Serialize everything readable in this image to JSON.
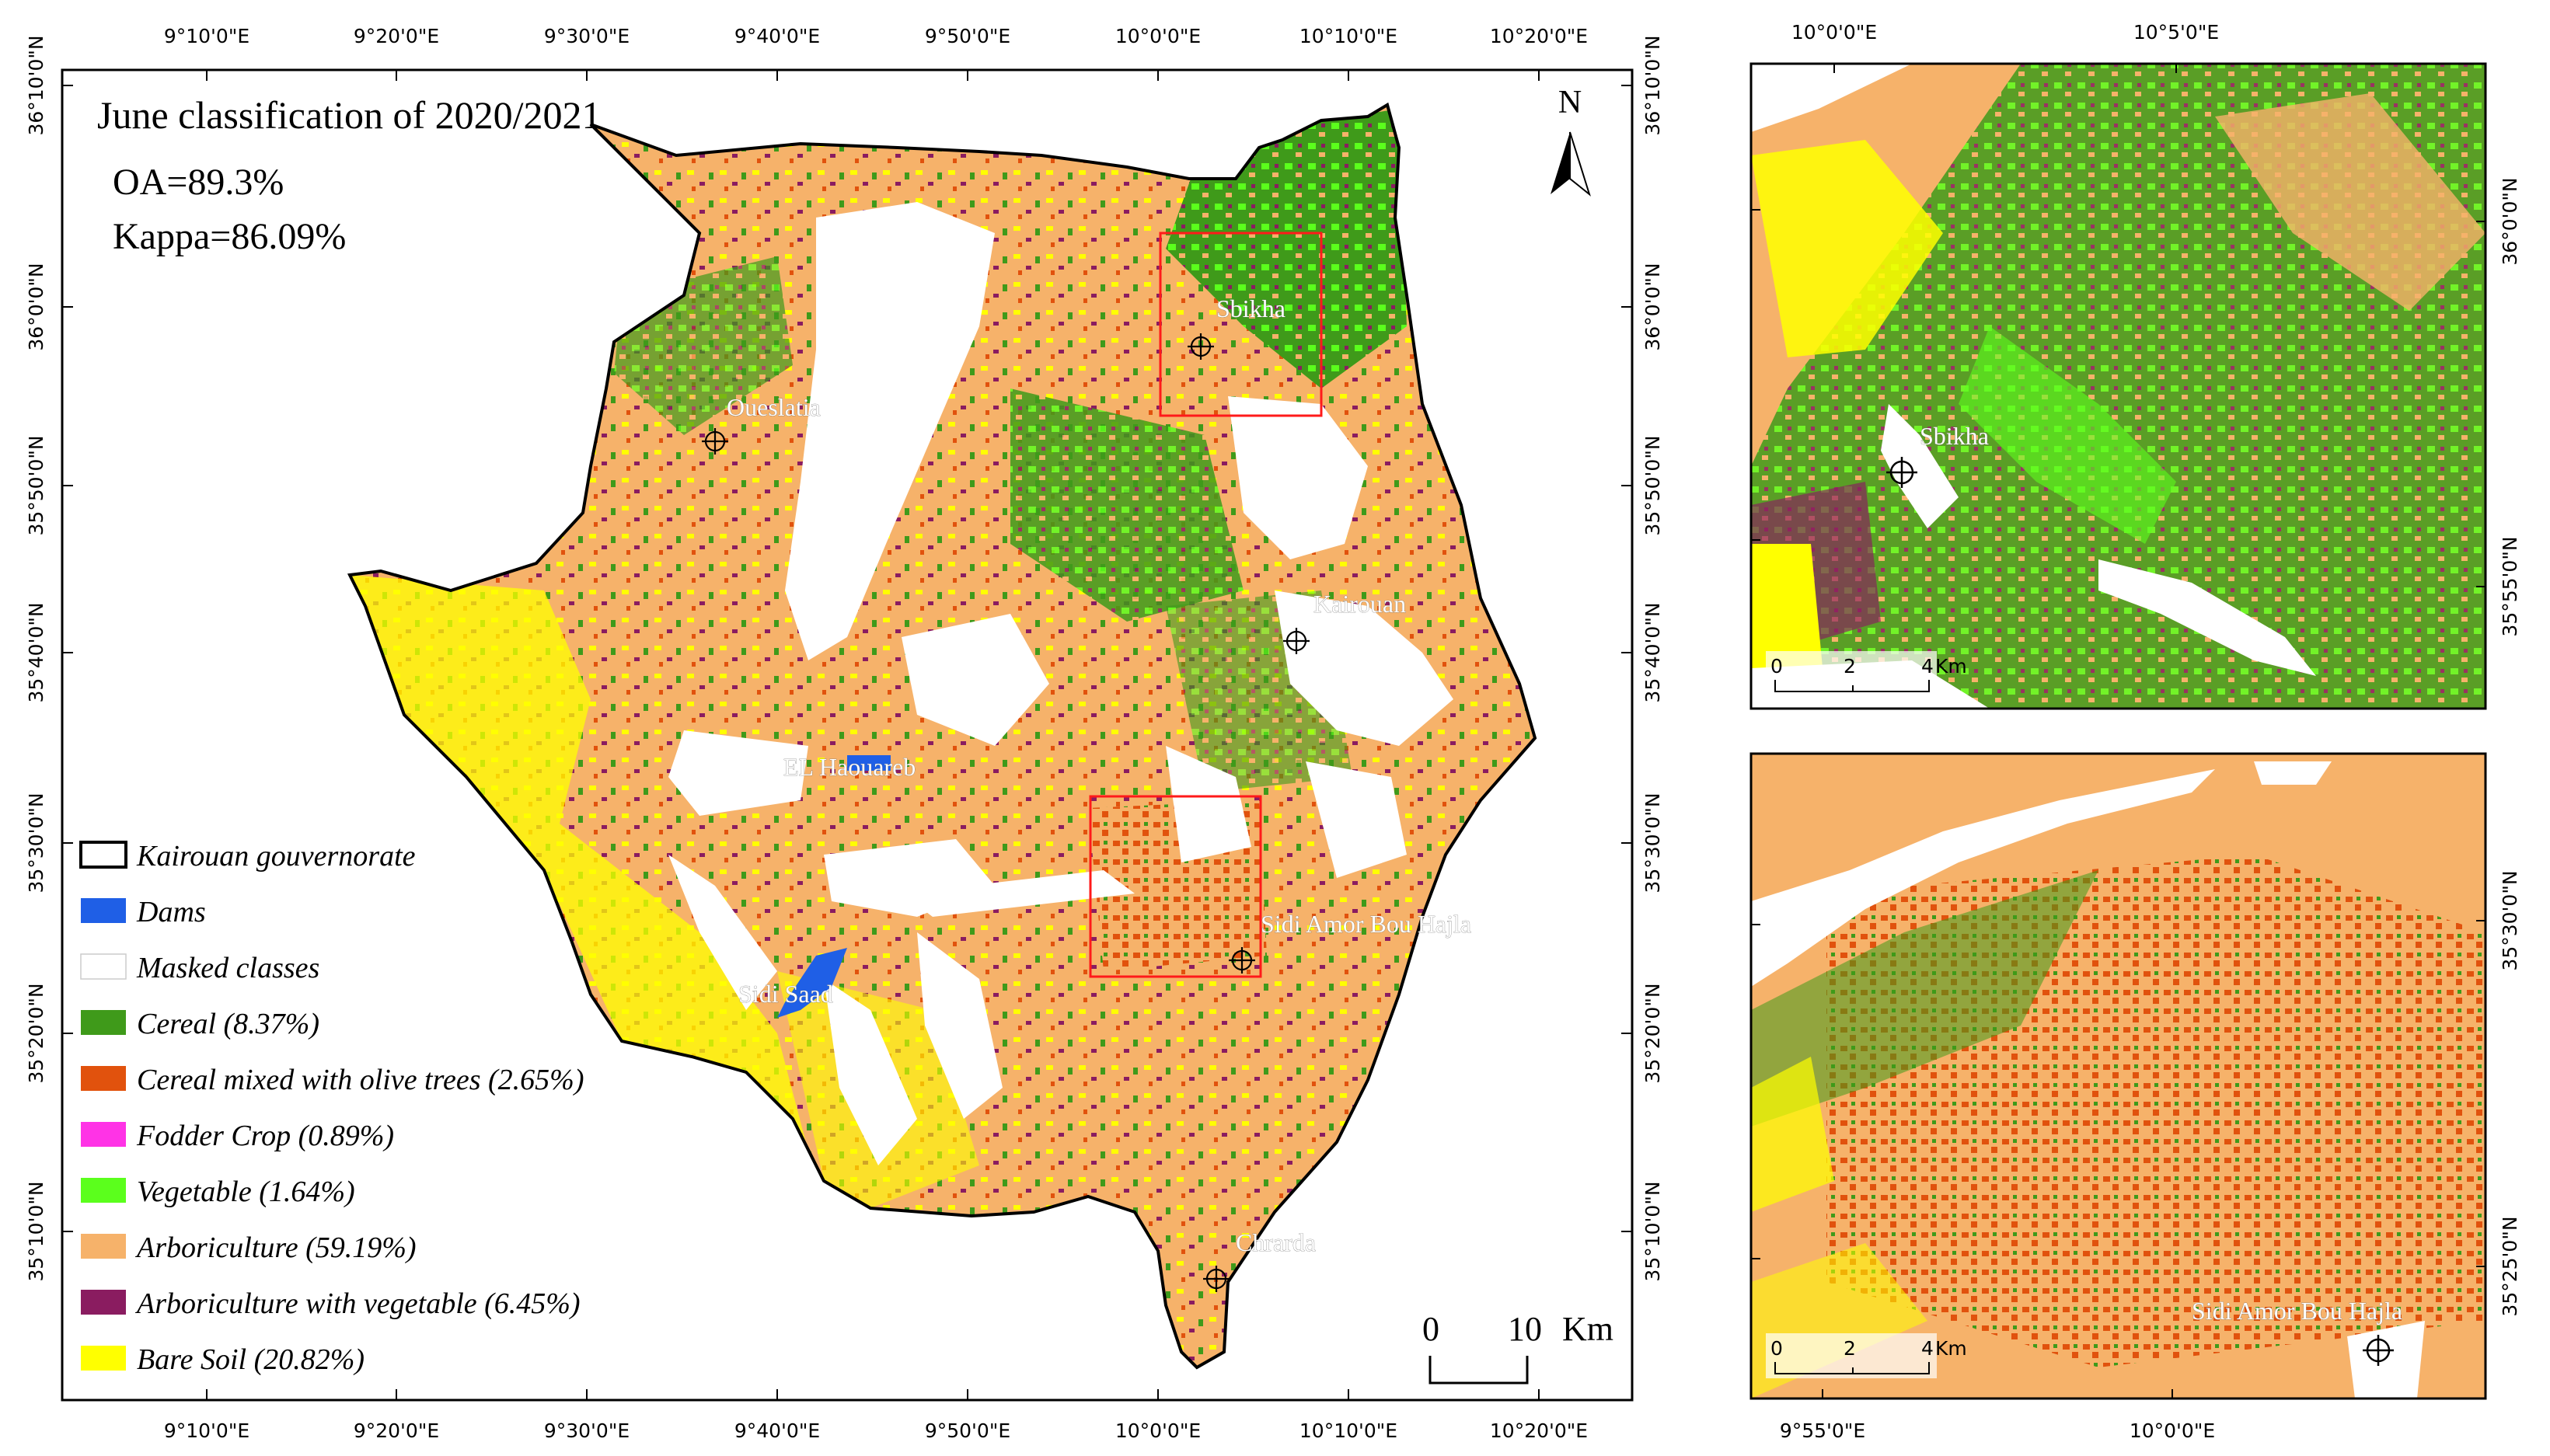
{
  "main_map": {
    "title": "June classification of 2020/2021",
    "oa": "OA=89.3%",
    "kappa": "Kappa=86.09%",
    "north_label": "N",
    "scale": {
      "zero": "0",
      "ten": "10",
      "unit": "Km"
    },
    "top_lon_ticks": [
      "9°10'0\"E",
      "9°20'0\"E",
      "9°30'0\"E",
      "9°40'0\"E",
      "9°50'0\"E",
      "10°0'0\"E",
      "10°10'0\"E",
      "10°20'0\"E"
    ],
    "bottom_lon_ticks": [
      "9°10'0\"E",
      "9°20'0\"E",
      "9°30'0\"E",
      "9°40'0\"E",
      "9°50'0\"E",
      "10°0'0\"E",
      "10°10'0\"E",
      "10°20'0\"E"
    ],
    "left_lat_ticks": [
      "36°10'0\"N",
      "36°0'0\"N",
      "35°50'0\"N",
      "35°40'0\"N",
      "35°30'0\"N",
      "35°20'0\"N",
      "35°10'0\"N"
    ],
    "right_lat_ticks": [
      "36°10'0\"N",
      "36°0'0\"N",
      "35°50'0\"N",
      "35°40'0\"N",
      "35°30'0\"N",
      "35°20'0\"N",
      "35°10'0\"N"
    ],
    "places": [
      "Oueslatia",
      "Sbikha",
      "Kairouan",
      "EL Haouareb",
      "Sidi Saad",
      "Sidi Amor Bou Hajla",
      "Chrarda"
    ]
  },
  "legend": {
    "items": [
      {
        "label": "Kairouan gouvernorate",
        "color": "#ffffff",
        "outline": true
      },
      {
        "label": "Dams",
        "color": "#1f5fe6"
      },
      {
        "label": "Masked classes",
        "color": "#ffffff"
      },
      {
        "label": "Cereal (8.37%)",
        "color": "#3f9a1a"
      },
      {
        "label": "Cereal mixed with olive trees (2.65%)",
        "color": "#e1520d"
      },
      {
        "label": "Fodder Crop (0.89%)",
        "color": "#ff33e6"
      },
      {
        "label": "Vegetable (1.64%)",
        "color": "#5bff1c"
      },
      {
        "label": "Arboriculture (59.19%)",
        "color": "#f6b26a"
      },
      {
        "label": "Arboriculture with vegetable (6.45%)",
        "color": "#8a1c60"
      },
      {
        "label": "Bare Soil (20.82%)",
        "color": "#ffff00"
      }
    ]
  },
  "inset_top": {
    "top_ticks": [
      "10°0'0\"E",
      "10°5'0\"E"
    ],
    "right_ticks": [
      "36°0'0\"N",
      "35°55'0\"N"
    ],
    "place": "Sbikha",
    "scale": {
      "zero": "0",
      "two": "2",
      "four": "4",
      "unit": "Km"
    }
  },
  "inset_bottom": {
    "bottom_ticks": [
      "9°55'0\"E",
      "10°0'0\"E"
    ],
    "right_ticks": [
      "35°30'0\"N",
      "35°25'0\"N"
    ],
    "place": "Sidi Amor Bou Hajla",
    "scale": {
      "zero": "0",
      "two": "2",
      "four": "4",
      "unit": "Km"
    }
  },
  "colors": {
    "highlight_box": "#ff1a1a"
  }
}
